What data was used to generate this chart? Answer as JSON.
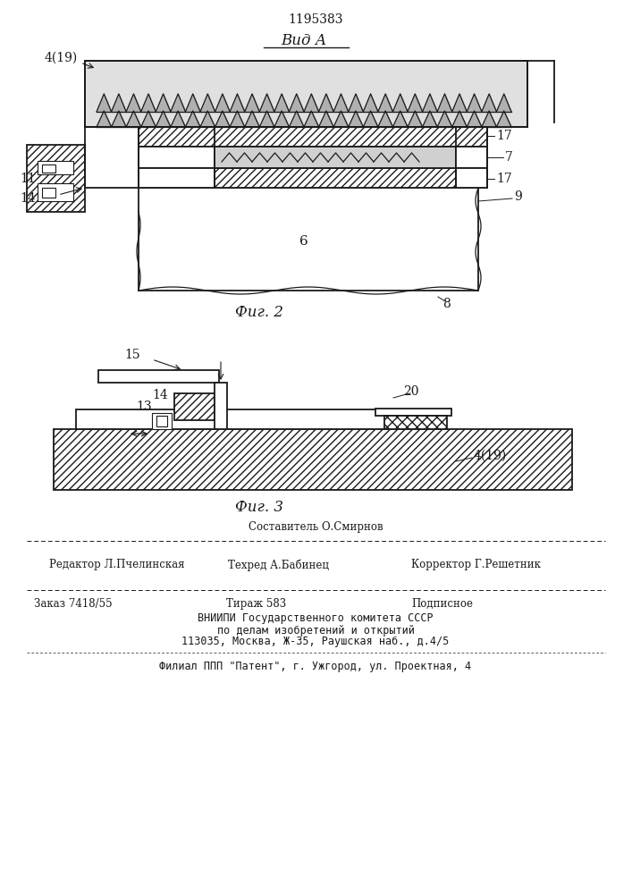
{
  "patent_number": "1195383",
  "view_label": "Вид А",
  "fig2_label": "Фиг. 2",
  "fig3_label": "Фиг. 3",
  "bg_color": "#ffffff",
  "line_color": "#1a1a1a",
  "footer": {
    "line1_top": "Составитель О.Смирнов",
    "line1_left": "Редактор Л.Пчелинская",
    "line1_center": "Техред А.Бабинец",
    "line1_right": "Корректор Г.Решетник",
    "line2_left": "Заказ 7418/55",
    "line2_center": "Тираж 583",
    "line2_right": "Подписное",
    "line3": "ВНИИПИ Государственного комитета СССР",
    "line4": "по делам изобретений и открытий",
    "line5": "113035, Москва, Ж-35, Раушская наб., д.4/5",
    "line6": "Филиал ППП \"Патент\", г. Ужгород, ул. Проектная, 4"
  }
}
